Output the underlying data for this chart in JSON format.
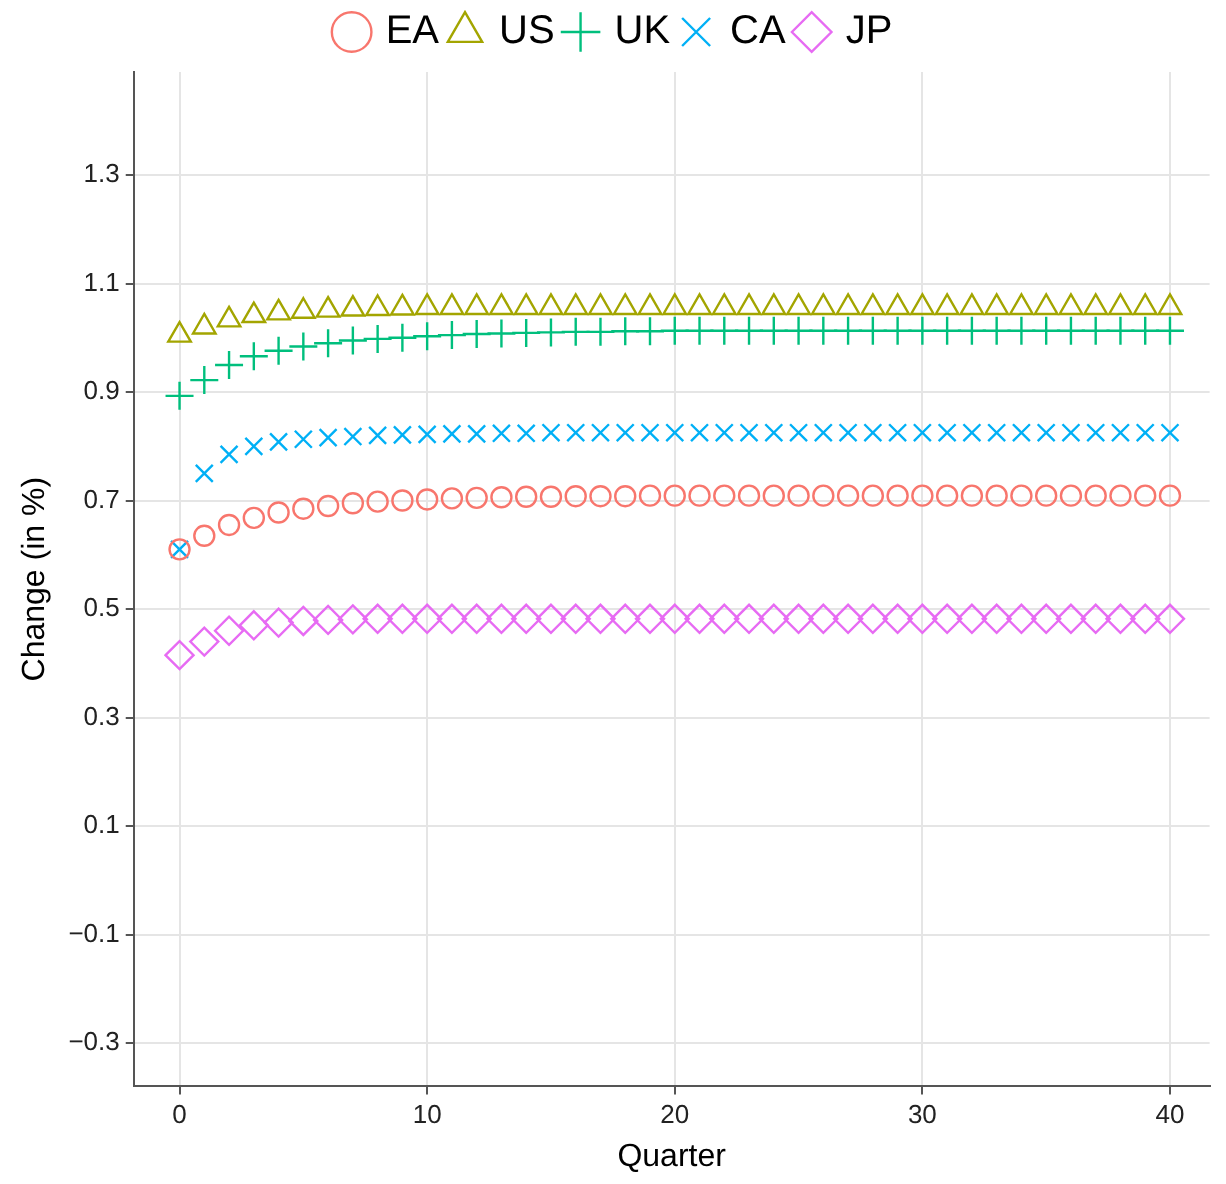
{
  "chart_data": {
    "type": "scatter",
    "xlabel": "Quarter",
    "ylabel": "Change (in %)",
    "legend": "top",
    "grid": true,
    "x": [
      0,
      1,
      2,
      3,
      4,
      5,
      6,
      7,
      8,
      9,
      10,
      11,
      12,
      13,
      14,
      15,
      16,
      17,
      18,
      19,
      20,
      21,
      22,
      23,
      24,
      25,
      26,
      27,
      28,
      29,
      30,
      31,
      32,
      33,
      34,
      35,
      36,
      37,
      38,
      39,
      40
    ],
    "xlim": [
      -1.85,
      41.6
    ],
    "xticks": [
      0,
      10,
      20,
      30,
      40
    ],
    "ylim": [
      -0.38,
      1.49
    ],
    "yticks": [
      {
        "value": -0.3,
        "label": "−0.3"
      },
      {
        "value": -0.1,
        "label": "−0.1"
      },
      0.1,
      0.3,
      0.5,
      0.7,
      0.9,
      1.1,
      1.3
    ],
    "series": [
      {
        "name": "EA",
        "color": "#f8766d",
        "marker": "circle",
        "values": [
          0.61,
          0.635,
          0.655,
          0.668,
          0.678,
          0.685,
          0.69,
          0.695,
          0.698,
          0.7,
          0.702,
          0.704,
          0.705,
          0.706,
          0.707,
          0.707,
          0.708,
          0.708,
          0.708,
          0.709,
          0.709,
          0.709,
          0.709,
          0.709,
          0.709,
          0.709,
          0.709,
          0.709,
          0.709,
          0.709,
          0.709,
          0.709,
          0.709,
          0.709,
          0.709,
          0.709,
          0.709,
          0.709,
          0.709,
          0.709,
          0.709
        ]
      },
      {
        "name": "US",
        "color": "#a3a500",
        "marker": "triangle",
        "values": [
          1.005,
          1.02,
          1.033,
          1.041,
          1.046,
          1.049,
          1.051,
          1.053,
          1.054,
          1.055,
          1.056,
          1.056,
          1.056,
          1.056,
          1.056,
          1.056,
          1.056,
          1.056,
          1.056,
          1.056,
          1.056,
          1.056,
          1.056,
          1.056,
          1.056,
          1.056,
          1.056,
          1.056,
          1.056,
          1.056,
          1.056,
          1.056,
          1.056,
          1.056,
          1.056,
          1.056,
          1.056,
          1.056,
          1.056,
          1.056,
          1.056
        ]
      },
      {
        "name": "UK",
        "color": "#00bf7d",
        "marker": "plus",
        "values": [
          0.893,
          0.922,
          0.95,
          0.966,
          0.976,
          0.984,
          0.99,
          0.995,
          0.998,
          1.0,
          1.003,
          1.005,
          1.007,
          1.008,
          1.009,
          1.01,
          1.011,
          1.011,
          1.012,
          1.012,
          1.013,
          1.013,
          1.013,
          1.013,
          1.013,
          1.013,
          1.013,
          1.013,
          1.013,
          1.013,
          1.013,
          1.013,
          1.013,
          1.013,
          1.013,
          1.013,
          1.013,
          1.013,
          1.013,
          1.013,
          1.013
        ]
      },
      {
        "name": "CA",
        "color": "#00b0f6",
        "marker": "cross",
        "values": [
          0.61,
          0.75,
          0.785,
          0.8,
          0.808,
          0.813,
          0.816,
          0.818,
          0.82,
          0.821,
          0.822,
          0.823,
          0.823,
          0.824,
          0.824,
          0.825,
          0.825,
          0.825,
          0.825,
          0.825,
          0.825,
          0.825,
          0.825,
          0.825,
          0.825,
          0.825,
          0.825,
          0.825,
          0.825,
          0.825,
          0.825,
          0.825,
          0.825,
          0.825,
          0.825,
          0.825,
          0.825,
          0.825,
          0.825,
          0.825,
          0.825
        ]
      },
      {
        "name": "JP",
        "color": "#e76bf3",
        "marker": "diamond",
        "values": [
          0.415,
          0.44,
          0.46,
          0.47,
          0.475,
          0.478,
          0.48,
          0.481,
          0.482,
          0.482,
          0.482,
          0.482,
          0.482,
          0.482,
          0.482,
          0.482,
          0.482,
          0.482,
          0.482,
          0.482,
          0.482,
          0.482,
          0.482,
          0.482,
          0.482,
          0.482,
          0.482,
          0.482,
          0.482,
          0.482,
          0.482,
          0.482,
          0.482,
          0.482,
          0.482,
          0.482,
          0.482,
          0.482,
          0.482,
          0.482,
          0.482
        ]
      }
    ]
  }
}
